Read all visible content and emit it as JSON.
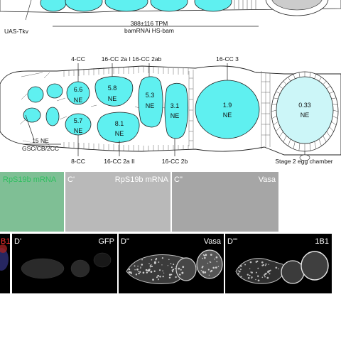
{
  "top_panel": {
    "left_label": "UAS-Tkv",
    "measure_value": "388±116 TPM",
    "measure_condition": "bamRNAi HS-bam"
  },
  "diagram": {
    "left_ne_value": "15 NE",
    "left_cell_types": "GSC/CB/2CC",
    "cysts": [
      {
        "name": "4-CC",
        "value": "6.6",
        "unit": "NE"
      },
      {
        "name": "8-CC",
        "value": "5.7",
        "unit": "NE"
      },
      {
        "name": "16-CC 2a I",
        "value": "5.8",
        "unit": "NE"
      },
      {
        "name": "16-CC 2a II",
        "value": "8.1",
        "unit": "NE"
      },
      {
        "name": "16-CC 2ab",
        "value": "5.3",
        "unit": "NE"
      },
      {
        "name": "16-CC 2b",
        "value": "3.1",
        "unit": "NE"
      },
      {
        "name": "16-CC 3",
        "value": "1.9",
        "unit": "NE"
      },
      {
        "name": "Stage 2 egg chamber",
        "value": "0.33",
        "unit": "NE"
      }
    ],
    "top_label_pair": "16-CC 2a I 16-CC 2ab"
  },
  "panels_c": [
    {
      "letter": "",
      "title": "RpS19b mRNA",
      "bg": "#7fbf95",
      "title_color": "#ffffff"
    },
    {
      "letter": "C'",
      "title": "RpS19b mRNA",
      "bg": "#b9b9b9",
      "title_color": "#ffffff"
    },
    {
      "letter": "C\"",
      "title": "Vasa",
      "bg": "#a6a6a6",
      "title_color": "#ffffff"
    }
  ],
  "panels_d": [
    {
      "letter": "",
      "title": "B1",
      "title_color": "#ff3030"
    },
    {
      "letter": "D'",
      "title": "GFP",
      "title_color": "#ffffff"
    },
    {
      "letter": "D\"",
      "title": "Vasa",
      "title_color": "#ffffff"
    },
    {
      "letter": "D'''",
      "title": "1B1",
      "title_color": "#ffffff"
    }
  ],
  "colors": {
    "cyst_fill": "#5ff0f0",
    "egg_fill": "#ccf6f8",
    "outline": "#222222"
  }
}
